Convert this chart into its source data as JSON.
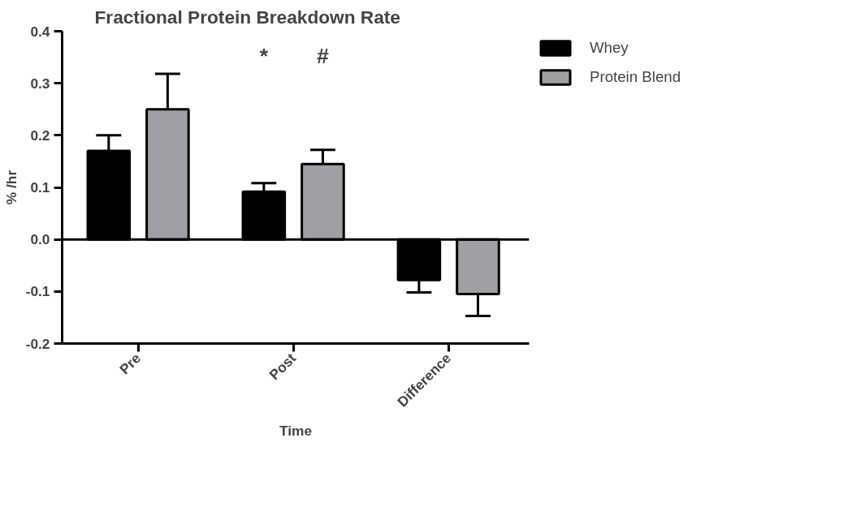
{
  "chart_data": {
    "type": "bar",
    "title": "Fractional Protein Breakdown Rate",
    "xlabel": "Time",
    "ylabel": "% /hr",
    "categories": [
      "Pre",
      "Post",
      "Difference"
    ],
    "series": [
      {
        "name": "Whey",
        "color": "#000000",
        "values": [
          0.17,
          0.092,
          -0.078
        ],
        "errors": [
          [
            0.17,
            0.2
          ],
          [
            0.092,
            0.108
          ],
          [
            -0.102,
            -0.078
          ]
        ]
      },
      {
        "name": "Protein Blend",
        "color": "#a0a0a4",
        "values": [
          0.25,
          0.145,
          -0.105
        ],
        "errors": [
          [
            0.25,
            0.318
          ],
          [
            0.145,
            0.172
          ],
          [
            -0.147,
            -0.105
          ]
        ]
      }
    ],
    "ylim": [
      -0.2,
      0.4
    ],
    "yticks": [
      {
        "value": -0.2,
        "label": "-0.2"
      },
      {
        "value": -0.1,
        "label": "-0.1"
      },
      {
        "value": 0,
        "label": "0.0"
      },
      {
        "value": 0.1,
        "label": "0.1"
      },
      {
        "value": 0.2,
        "label": "0.2"
      },
      {
        "value": 0.3,
        "label": "0.3"
      },
      {
        "value": 0.4,
        "label": "0.4"
      }
    ],
    "ref_lines": [
      {
        "axis": "y",
        "value": 0,
        "color": "#000000"
      }
    ],
    "annotations": [
      "*",
      "#"
    ],
    "grid": false,
    "legend": "top right"
  }
}
